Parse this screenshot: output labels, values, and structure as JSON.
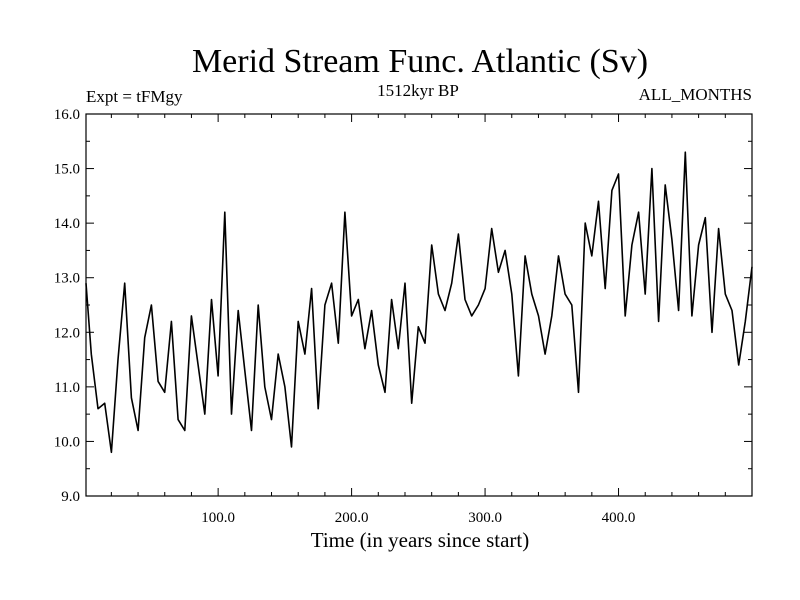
{
  "chart_data": {
    "type": "line",
    "title": "Merid Stream Func. Atlantic (Sv)",
    "subtitle_left": "Expt = tFMgy",
    "subtitle_center": "1512kyr BP",
    "subtitle_right": "ALL_MONTHS",
    "xlabel": "Time (in years since start)",
    "ylabel": "",
    "xlim": [
      1,
      500
    ],
    "ylim": [
      9.0,
      16.0
    ],
    "x_ticks": [
      100,
      200,
      300,
      400
    ],
    "x_tick_labels": [
      "100.0",
      "200.0",
      "300.0",
      "400.0"
    ],
    "y_ticks": [
      9,
      10,
      11,
      12,
      13,
      14,
      15,
      16
    ],
    "y_tick_labels": [
      "9.0",
      "10.0",
      "11.0",
      "12.0",
      "13.0",
      "14.0",
      "15.0",
      "16.0"
    ],
    "grid": false,
    "series": [
      {
        "name": "tFMgy",
        "x": [
          1,
          5,
          10,
          15,
          20,
          25,
          30,
          35,
          40,
          45,
          50,
          55,
          60,
          65,
          70,
          75,
          80,
          85,
          90,
          95,
          100,
          105,
          110,
          115,
          120,
          125,
          130,
          135,
          140,
          145,
          150,
          155,
          160,
          165,
          170,
          175,
          180,
          185,
          190,
          195,
          200,
          205,
          210,
          215,
          220,
          225,
          230,
          235,
          240,
          245,
          250,
          255,
          260,
          265,
          270,
          275,
          280,
          285,
          290,
          295,
          300,
          305,
          310,
          315,
          320,
          325,
          330,
          335,
          340,
          345,
          350,
          355,
          360,
          365,
          370,
          375,
          380,
          385,
          390,
          395,
          400,
          405,
          410,
          415,
          420,
          425,
          430,
          435,
          440,
          445,
          450,
          455,
          460,
          465,
          470,
          475,
          480,
          485,
          490,
          495,
          500
        ],
        "values": [
          12.9,
          11.6,
          10.6,
          10.7,
          9.8,
          11.5,
          12.9,
          10.8,
          10.2,
          11.9,
          12.5,
          11.1,
          10.9,
          12.2,
          10.4,
          10.2,
          12.3,
          11.4,
          10.5,
          12.6,
          11.2,
          14.2,
          10.5,
          12.4,
          11.3,
          10.2,
          12.5,
          11.0,
          10.4,
          11.6,
          11.0,
          9.9,
          12.2,
          11.6,
          12.8,
          10.6,
          12.5,
          12.9,
          11.8,
          14.2,
          12.3,
          12.6,
          11.7,
          12.4,
          11.4,
          10.9,
          12.6,
          11.7,
          12.9,
          10.7,
          12.1,
          11.8,
          13.6,
          12.7,
          12.4,
          12.9,
          13.8,
          12.6,
          12.3,
          12.5,
          12.8,
          13.9,
          13.1,
          13.5,
          12.7,
          11.2,
          13.4,
          12.7,
          12.3,
          11.6,
          12.3,
          13.4,
          12.7,
          12.5,
          10.9,
          14.0,
          13.4,
          14.4,
          12.8,
          14.6,
          14.9,
          12.3,
          13.6,
          14.2,
          12.7,
          15.0,
          12.2,
          14.7,
          13.7,
          12.4,
          15.3,
          12.3,
          13.6,
          14.1,
          12.0,
          13.9,
          12.7,
          12.4,
          11.4,
          12.2,
          13.2
        ]
      }
    ]
  }
}
